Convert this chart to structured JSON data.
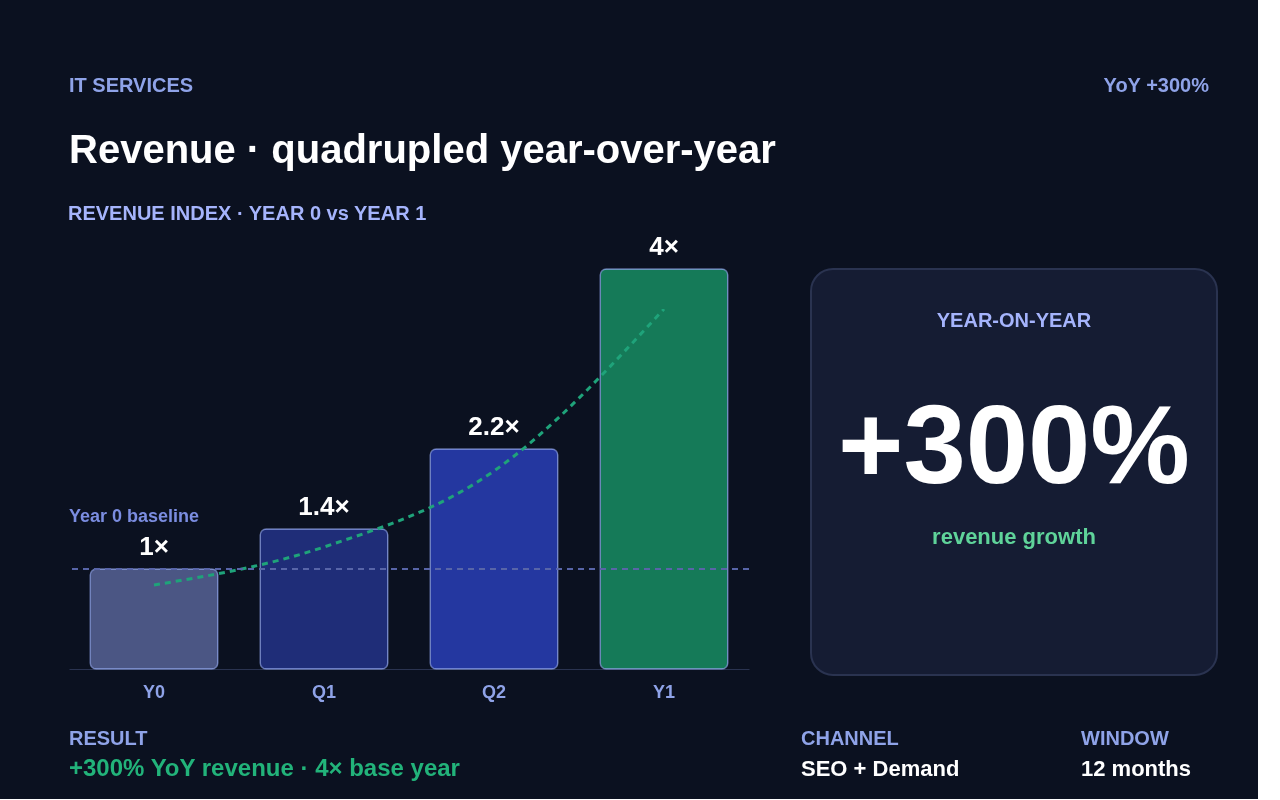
{
  "chart_data": [
    {
      "type": "bar",
      "title": "Revenue · quadrupled year-over-year",
      "subtitle": "REVENUE INDEX · YEAR 0 vs YEAR 1",
      "categories": [
        "Y0",
        "Q1",
        "Q2",
        "Y1"
      ],
      "series": [
        {
          "type": "bar",
          "values": [
            1,
            1.4,
            2.2,
            4
          ],
          "colors": [
            "#4b5684",
            "#1f2d78",
            "#2437a0",
            "#157a58"
          ],
          "value_labels": [
            "1×",
            "1.4×",
            "2.2×",
            "4×"
          ]
        },
        {
          "type": "line",
          "color": "#1fa37a",
          "values": [
            0.84,
            1.22,
            1.98,
            3.6
          ],
          "line_style": "dashed",
          "marker": "none"
        }
      ],
      "ref_lines": [
        {
          "axis": "y",
          "value": 1,
          "label": "Year 0 baseline",
          "color": "#5865a8",
          "line_style": "dashed"
        }
      ],
      "annotations": [
        "IT SERVICES",
        "YoY +300%",
        "RESULT",
        "+300% YoY revenue · 4× base year",
        "CHANNEL",
        "SEO + Demand",
        "WINDOW",
        "12 months"
      ],
      "grid": false
    },
    {
      "type": "other",
      "title": "YEAR-ON-YEAR",
      "annotations": [
        "+300%",
        "revenue growth"
      ]
    }
  ]
}
